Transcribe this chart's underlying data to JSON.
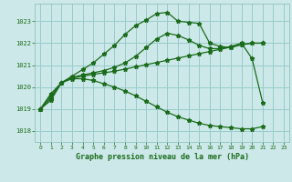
{
  "title": "Graphe pression niveau de la mer (hPa)",
  "bg_color": "#cce8e8",
  "grid_color": "#99cccc",
  "line_color": "#1a6b1a",
  "xlim": [
    -0.5,
    23.5
  ],
  "ylim": [
    1017.5,
    1023.8
  ],
  "yticks": [
    1018,
    1019,
    1020,
    1021,
    1022,
    1023
  ],
  "xticks": [
    0,
    1,
    2,
    3,
    4,
    5,
    6,
    7,
    8,
    9,
    10,
    11,
    12,
    13,
    14,
    15,
    16,
    17,
    18,
    19,
    20,
    21,
    22,
    23
  ],
  "lines": [
    {
      "x": [
        0,
        1,
        2,
        3,
        4,
        5,
        6,
        7,
        8,
        9,
        10,
        11,
        12,
        13,
        14,
        15,
        16,
        17,
        18,
        19,
        20,
        21
      ],
      "y": [
        1019.0,
        1019.7,
        1020.2,
        1020.5,
        1020.8,
        1021.1,
        1021.5,
        1021.9,
        1022.4,
        1022.8,
        1023.05,
        1023.35,
        1023.4,
        1023.0,
        1022.95,
        1022.9,
        1022.0,
        1021.85,
        1021.8,
        1021.95,
        1022.0,
        1022.0
      ]
    },
    {
      "x": [
        0,
        1,
        2,
        3,
        4,
        5,
        6,
        7,
        8,
        9,
        10,
        11,
        12,
        13,
        14,
        15,
        16,
        17,
        18,
        19,
        20,
        21
      ],
      "y": [
        1019.0,
        1019.6,
        1020.2,
        1020.45,
        1020.55,
        1020.65,
        1020.75,
        1020.9,
        1021.1,
        1021.4,
        1021.8,
        1022.2,
        1022.45,
        1022.35,
        1022.15,
        1021.9,
        1021.75,
        1021.75,
        1021.85,
        1022.0,
        1021.3,
        1019.3
      ]
    },
    {
      "x": [
        0,
        1,
        2,
        3,
        4,
        5,
        6,
        7,
        8,
        9,
        10,
        11,
        12,
        13,
        14,
        15,
        16,
        17,
        18,
        19,
        20,
        21
      ],
      "y": [
        1019.0,
        1019.5,
        1020.2,
        1020.4,
        1020.5,
        1020.58,
        1020.65,
        1020.72,
        1020.82,
        1020.92,
        1021.02,
        1021.12,
        1021.22,
        1021.32,
        1021.42,
        1021.52,
        1021.62,
        1021.72,
        1021.82,
        1021.92,
        1022.0,
        1022.0
      ]
    },
    {
      "x": [
        0,
        1,
        2,
        3,
        4,
        5,
        6,
        7,
        8,
        9,
        10,
        11,
        12,
        13,
        14,
        15,
        16,
        17,
        18,
        19,
        20,
        21
      ],
      "y": [
        1019.0,
        1019.4,
        1020.2,
        1020.38,
        1020.38,
        1020.3,
        1020.15,
        1020.0,
        1019.82,
        1019.6,
        1019.35,
        1019.1,
        1018.85,
        1018.65,
        1018.5,
        1018.35,
        1018.25,
        1018.2,
        1018.15,
        1018.1,
        1018.1,
        1018.2
      ]
    }
  ]
}
